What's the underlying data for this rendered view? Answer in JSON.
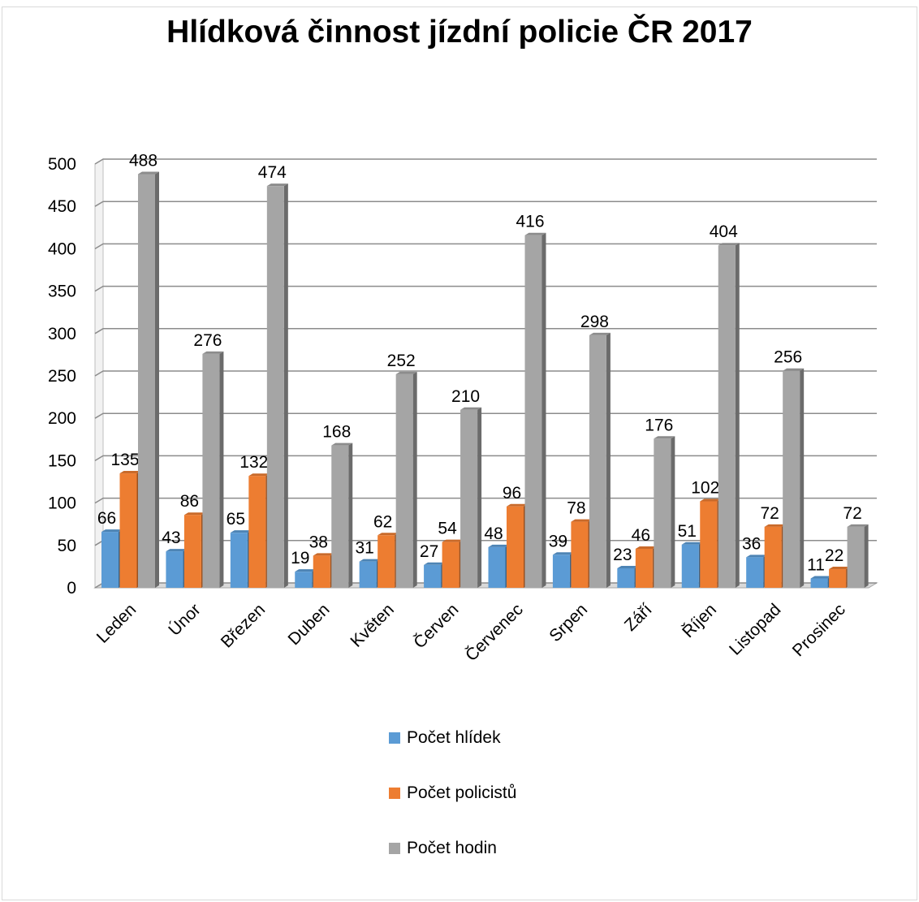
{
  "chart_data": {
    "type": "bar",
    "title": "Hlídková činnost jízdní policie ČR 2017",
    "categories": [
      "Leden",
      "Únor",
      "Březen",
      "Duben",
      "Květen",
      "Červen",
      "Červenec",
      "Srpen",
      "Září",
      "Říjen",
      "Listopad",
      "Prosinec"
    ],
    "series": [
      {
        "name": "Počet hlídek",
        "color": "#5b9bd5",
        "values": [
          66,
          43,
          65,
          19,
          31,
          27,
          48,
          39,
          23,
          51,
          36,
          11
        ]
      },
      {
        "name": "Počet policistů",
        "color": "#ed7d31",
        "values": [
          135,
          86,
          132,
          38,
          62,
          54,
          96,
          78,
          46,
          102,
          72,
          22
        ]
      },
      {
        "name": "Počet hodin",
        "color": "#a5a5a5",
        "values": [
          488,
          276,
          474,
          168,
          252,
          210,
          416,
          298,
          176,
          404,
          256,
          72
        ]
      }
    ],
    "ylim": [
      0,
      500
    ],
    "yticks": [
      0,
      50,
      100,
      150,
      200,
      250,
      300,
      350,
      400,
      450,
      500
    ],
    "grid": true,
    "legend_position": "bottom",
    "style": "3d-clustered-column"
  }
}
